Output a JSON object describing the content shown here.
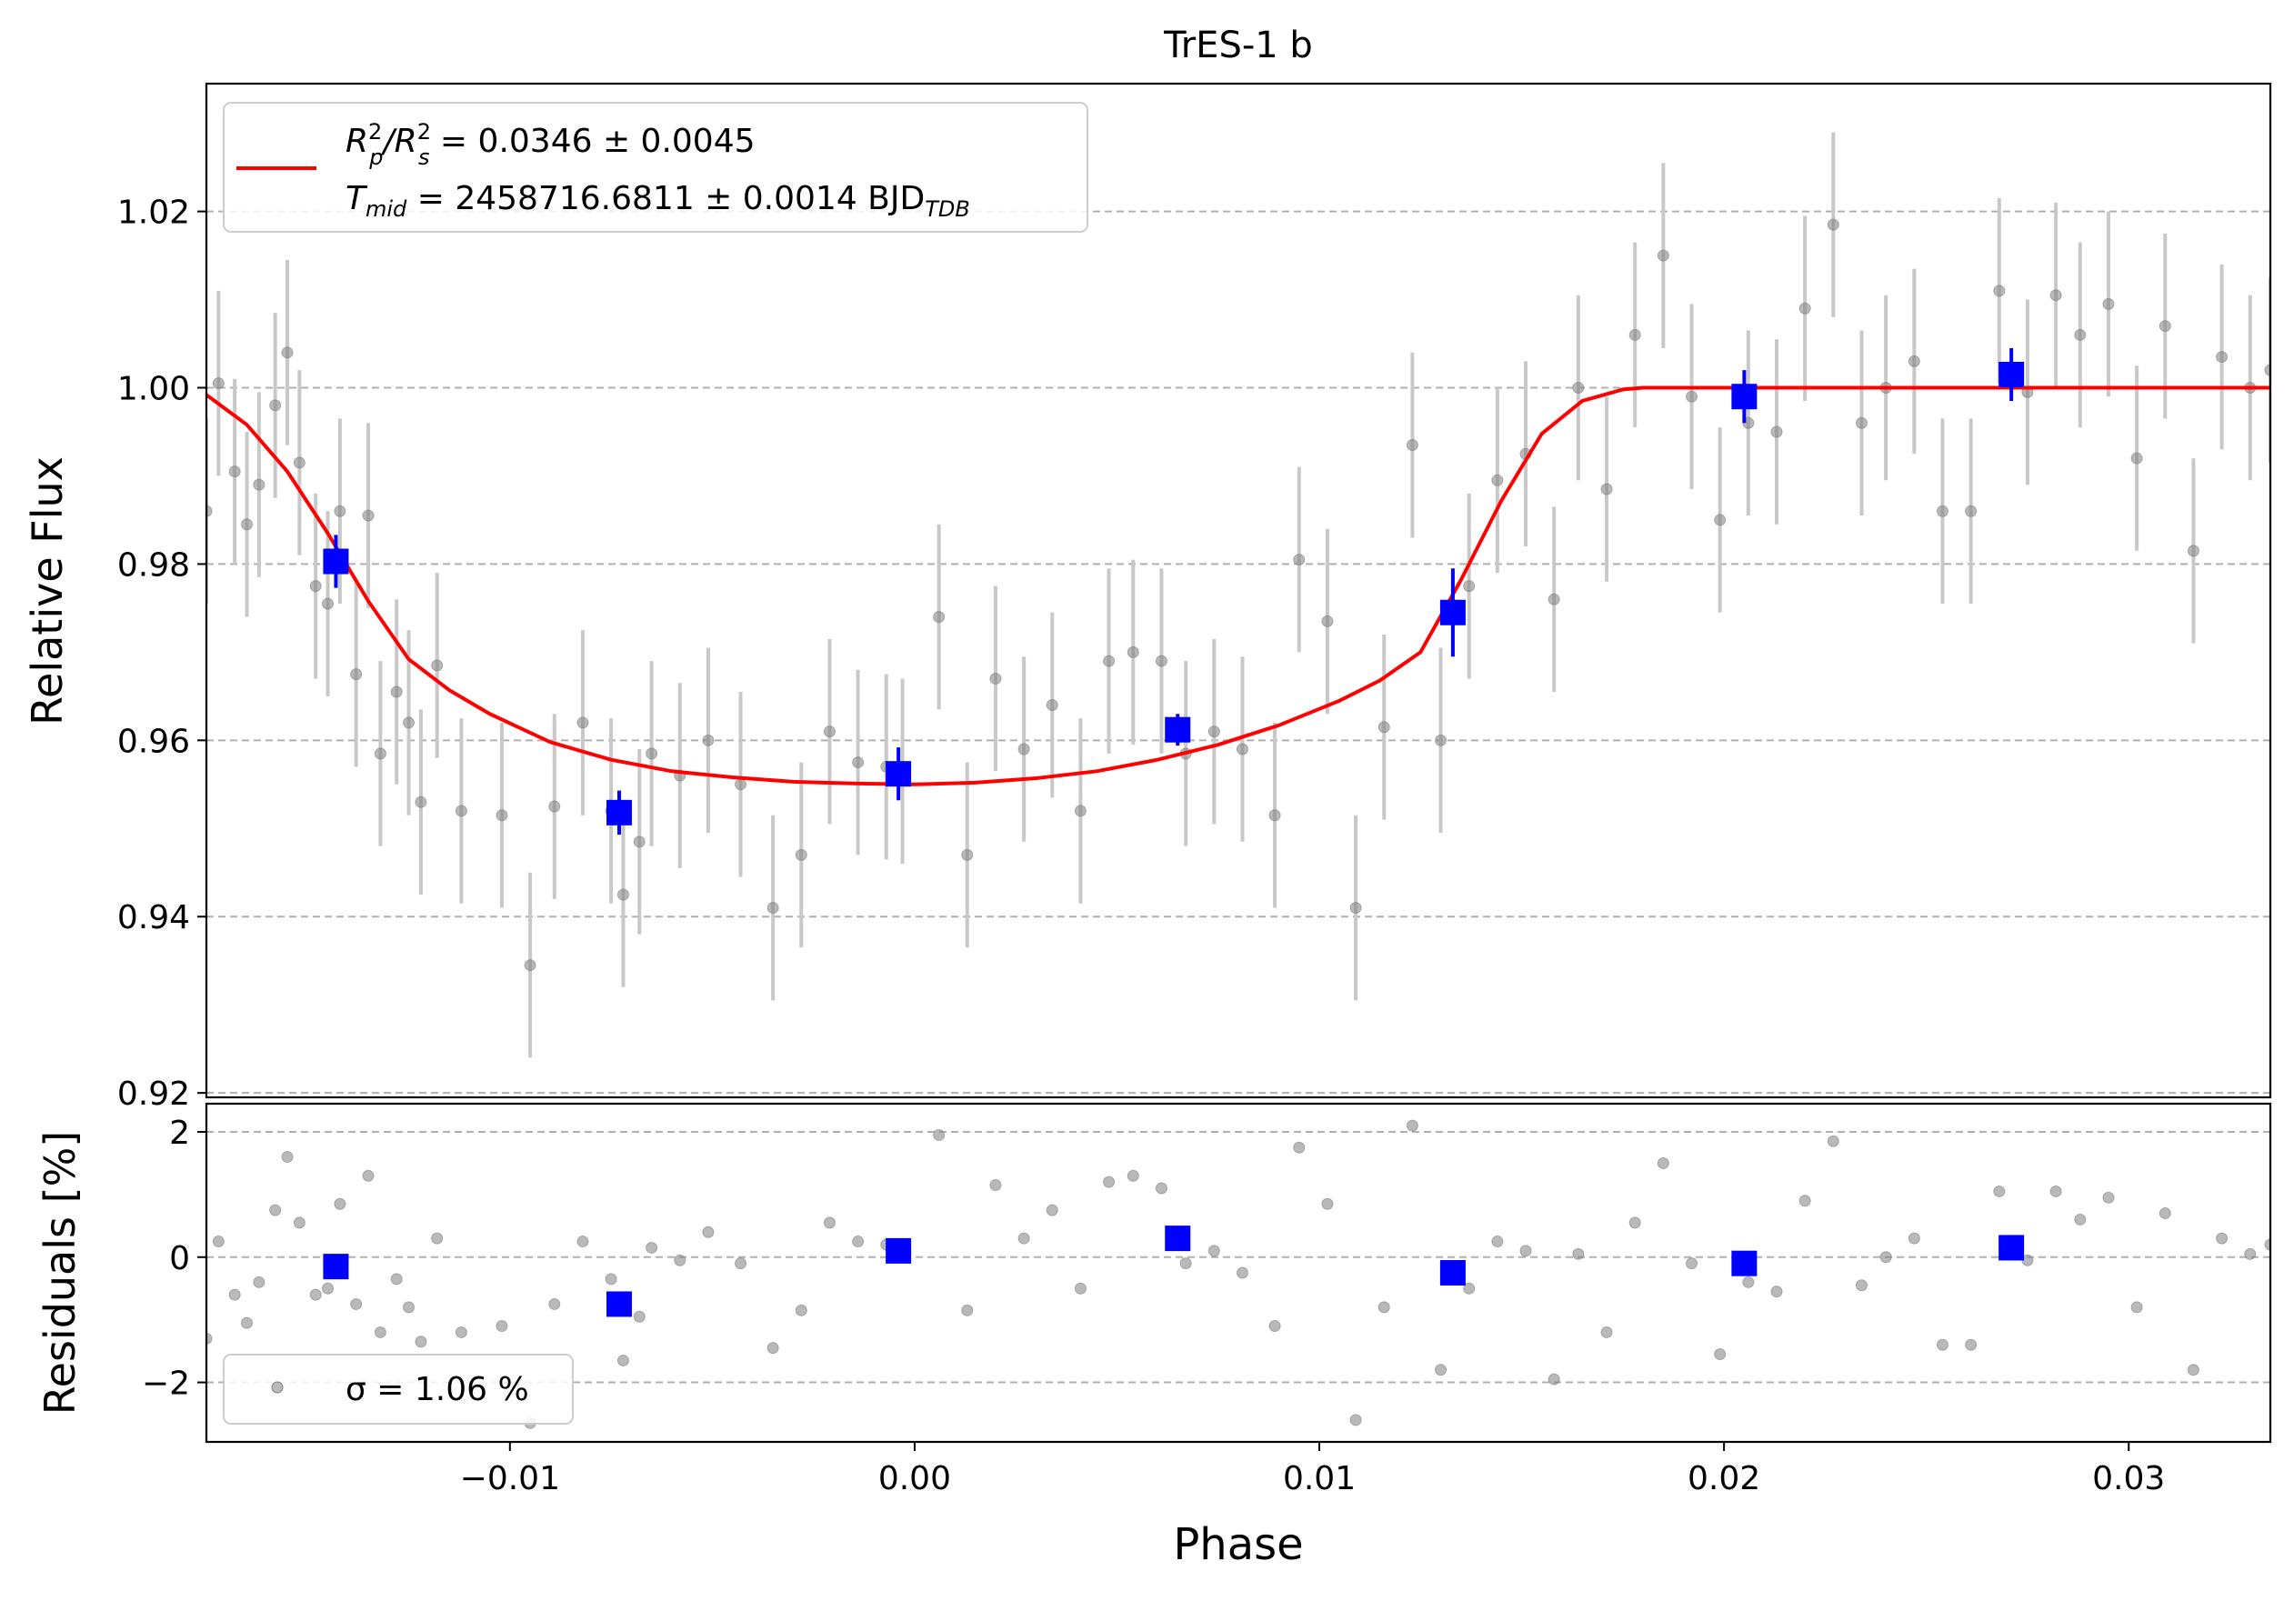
{
  "colors": {
    "model": "#ff0000",
    "binned": "#0000ff",
    "raw_points": "#808080",
    "errorbars": "#c8c8c8",
    "grid": "#b0b0b0"
  },
  "chart_data": [
    {
      "panel": "light-curve",
      "type": "scatter",
      "title": "TrES-1 b",
      "xlabel": "",
      "ylabel": "Relative Flux",
      "xlim": [
        -0.0175,
        0.0335
      ],
      "ylim": [
        0.9195,
        1.0345
      ],
      "y_ticks": [
        0.92,
        0.94,
        0.96,
        0.98,
        1.0,
        1.02
      ],
      "y_tick_labels": [
        "0.92",
        "0.94",
        "0.96",
        "0.98",
        "1.00",
        "1.02"
      ],
      "grid": "horizontal dashed",
      "legend": {
        "placement": "top-left",
        "line1_a": "R",
        "line1_b": "2",
        "line1_c": "p",
        "line1_d": "/R",
        "line1_e": "2",
        "line1_f": "s",
        "line1_g": " = 0.0346 ± 0.0045",
        "line2_a": "T",
        "line2_b": "mid",
        "line2_c": " = 2458716.6811 ± 0.0014 BJD",
        "line2_d": "TDB"
      },
      "model": {
        "name": "transit model",
        "x": [
          -0.0175,
          -0.0165,
          -0.0155,
          -0.0145,
          -0.0135,
          -0.0125,
          -0.0115,
          -0.0105,
          -0.009,
          -0.0075,
          -0.006,
          -0.0045,
          -0.003,
          -0.0015,
          0.0,
          0.0015,
          0.003,
          0.0045,
          0.006,
          0.0075,
          0.009,
          0.0105,
          0.0115,
          0.0125,
          0.0135,
          0.0145,
          0.0155,
          0.0165,
          0.0175,
          0.018,
          0.02,
          0.025,
          0.03,
          0.0335
        ],
        "y": [
          0.9992,
          0.9958,
          0.9905,
          0.9835,
          0.9758,
          0.9692,
          0.9657,
          0.963,
          0.9598,
          0.9578,
          0.9565,
          0.9558,
          0.9553,
          0.9551,
          0.955,
          0.9552,
          0.9557,
          0.9565,
          0.9578,
          0.9595,
          0.9617,
          0.9645,
          0.9668,
          0.97,
          0.9782,
          0.9872,
          0.9948,
          0.9985,
          0.9998,
          1.0,
          1.0,
          1.0,
          1.0,
          1.0
        ]
      },
      "raw": {
        "name": "raw data",
        "x": [
          -0.0175,
          -0.0172,
          -0.0168,
          -0.0165,
          -0.0162,
          -0.0158,
          -0.0155,
          -0.0152,
          -0.0148,
          -0.0145,
          -0.0142,
          -0.0138,
          -0.0135,
          -0.0132,
          -0.0128,
          -0.0125,
          -0.0122,
          -0.0118,
          -0.0112,
          -0.0102,
          -0.0095,
          -0.0089,
          -0.0082,
          -0.0075,
          -0.0072,
          -0.0068,
          -0.0065,
          -0.0058,
          -0.0051,
          -0.0043,
          -0.0035,
          -0.0028,
          -0.0021,
          -0.0014,
          -0.0007,
          -0.0003,
          0.0006,
          0.0013,
          0.002,
          0.0027,
          0.0034,
          0.0041,
          0.0048,
          0.0054,
          0.0061,
          0.0067,
          0.0074,
          0.0081,
          0.0089,
          0.0095,
          0.0102,
          0.0109,
          0.0116,
          0.0123,
          0.013,
          0.0137,
          0.0144,
          0.0151,
          0.0158,
          0.0164,
          0.0171,
          0.0178,
          0.0185,
          0.0192,
          0.0199,
          0.0206,
          0.0213,
          0.022,
          0.0227,
          0.0234,
          0.024,
          0.0247,
          0.0254,
          0.0261,
          0.0268,
          0.0275,
          0.0282,
          0.0288,
          0.0295,
          0.0302,
          0.0309,
          0.0316,
          0.0323,
          0.033,
          0.0335
        ],
        "y": [
          0.986,
          1.0005,
          0.9905,
          0.9845,
          0.989,
          0.998,
          1.004,
          0.9915,
          0.9775,
          0.9755,
          0.986,
          0.9675,
          0.9855,
          0.9585,
          0.9655,
          0.962,
          0.953,
          0.9685,
          0.952,
          0.9515,
          0.9345,
          0.9525,
          0.962,
          0.952,
          0.9425,
          0.9485,
          0.9585,
          0.956,
          0.96,
          0.955,
          0.941,
          0.947,
          0.961,
          0.9575,
          0.957,
          0.9565,
          0.974,
          0.947,
          0.967,
          0.959,
          0.964,
          0.952,
          0.969,
          0.97,
          0.969,
          0.9585,
          0.961,
          0.959,
          0.9515,
          0.9805,
          0.9735,
          0.941,
          0.9615,
          0.9935,
          0.96,
          0.9775,
          0.9895,
          0.9925,
          0.976,
          1.0,
          0.9885,
          1.006,
          1.015,
          0.999,
          0.985,
          0.996,
          0.995,
          1.009,
          1.0185,
          0.996,
          1.0,
          1.003,
          0.986,
          0.986,
          1.011,
          0.9995,
          1.0105,
          1.006,
          1.0095,
          0.992,
          1.007,
          0.9815,
          1.0035,
          1.0,
          1.002
        ],
        "yerr": 0.0105
      },
      "binned": {
        "name": "binned data",
        "x": [
          -0.0143,
          -0.0073,
          -0.0004,
          0.0065,
          0.0133,
          0.0205,
          0.0271
        ],
        "y": [
          0.9803,
          0.9518,
          0.9562,
          0.9612,
          0.9745,
          0.999,
          1.0015
        ],
        "yerr": [
          0.003,
          0.0025,
          0.003,
          0.0018,
          0.005,
          0.003,
          0.003
        ]
      }
    },
    {
      "panel": "residuals",
      "type": "scatter",
      "xlabel": "Phase",
      "ylabel": "Residuals [%]",
      "xlim": [
        -0.0175,
        0.0335
      ],
      "ylim": [
        -2.95,
        2.45
      ],
      "x_ticks": [
        -0.01,
        0.0,
        0.01,
        0.02,
        0.03
      ],
      "x_tick_labels": [
        "−0.01",
        "0.00",
        "0.01",
        "0.02",
        "0.03"
      ],
      "y_ticks": [
        -2,
        0,
        2
      ],
      "y_tick_labels": [
        "−2",
        "0",
        "2"
      ],
      "grid": "horizontal dashed",
      "legend": {
        "placement": "bottom-left",
        "label": "σ = 1.06 %"
      },
      "raw": {
        "x": [
          -0.0175,
          -0.0172,
          -0.0168,
          -0.0165,
          -0.0162,
          -0.0158,
          -0.0155,
          -0.0152,
          -0.0148,
          -0.0145,
          -0.0142,
          -0.0138,
          -0.0135,
          -0.0132,
          -0.0128,
          -0.0125,
          -0.0122,
          -0.0118,
          -0.0112,
          -0.0102,
          -0.0095,
          -0.0089,
          -0.0082,
          -0.0075,
          -0.0072,
          -0.0068,
          -0.0065,
          -0.0058,
          -0.0051,
          -0.0043,
          -0.0035,
          -0.0028,
          -0.0021,
          -0.0014,
          -0.0007,
          -0.0003,
          0.0006,
          0.0013,
          0.002,
          0.0027,
          0.0034,
          0.0041,
          0.0048,
          0.0054,
          0.0061,
          0.0067,
          0.0074,
          0.0081,
          0.0089,
          0.0095,
          0.0102,
          0.0109,
          0.0116,
          0.0123,
          0.013,
          0.0137,
          0.0144,
          0.0151,
          0.0158,
          0.0164,
          0.0171,
          0.0178,
          0.0185,
          0.0192,
          0.0199,
          0.0206,
          0.0213,
          0.022,
          0.0227,
          0.0234,
          0.024,
          0.0247,
          0.0254,
          0.0261,
          0.0268,
          0.0275,
          0.0282,
          0.0288,
          0.0295,
          0.0302,
          0.0309,
          0.0316,
          0.0323,
          0.033,
          0.0335
        ],
        "y": [
          -1.3,
          0.25,
          -0.6,
          -1.05,
          -0.4,
          0.75,
          1.6,
          0.55,
          -0.6,
          -0.5,
          0.85,
          -0.75,
          1.3,
          -1.2,
          -0.35,
          -0.8,
          -1.35,
          0.3,
          -1.2,
          -1.1,
          -2.65,
          -0.75,
          0.25,
          -0.35,
          -1.65,
          -0.95,
          0.15,
          -0.05,
          0.4,
          -0.1,
          -1.45,
          -0.85,
          0.55,
          0.25,
          0.2,
          0.1,
          1.95,
          -0.85,
          1.15,
          0.3,
          0.75,
          -0.5,
          1.2,
          1.3,
          1.1,
          -0.1,
          0.1,
          -0.25,
          -1.1,
          1.75,
          0.85,
          -2.6,
          -0.8,
          2.1,
          -1.8,
          -0.5,
          0.25,
          0.1,
          -1.95,
          0.05,
          -1.2,
          0.55,
          1.5,
          -0.1,
          -1.55,
          -0.4,
          -0.55,
          0.9,
          1.85,
          -0.45,
          0.0,
          0.3,
          -1.4,
          -1.4,
          1.05,
          -0.05,
          1.05,
          0.6,
          0.95,
          -0.8,
          0.7,
          -1.8,
          0.3,
          0.05,
          0.2
        ]
      },
      "binned": {
        "x": [
          -0.0143,
          -0.0073,
          -0.0004,
          0.0065,
          0.0133,
          0.0205,
          0.0271
        ],
        "y": [
          -0.15,
          -0.75,
          0.1,
          0.3,
          -0.25,
          -0.1,
          0.15
        ]
      }
    }
  ]
}
